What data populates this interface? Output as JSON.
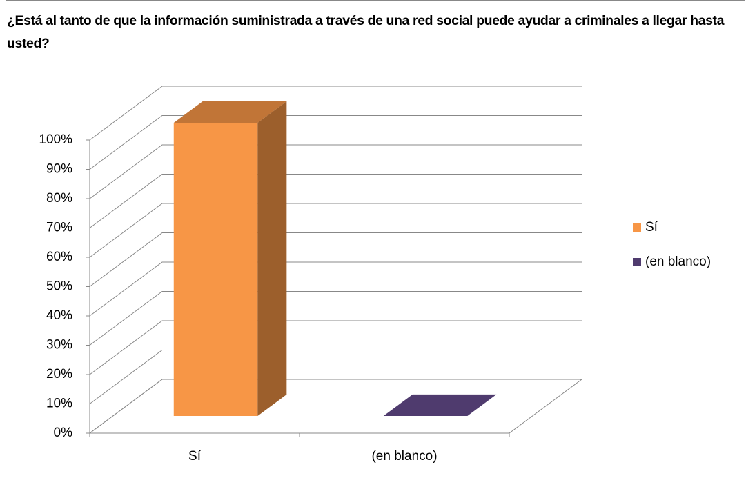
{
  "chart_data": {
    "type": "bar3d",
    "title": "¿Está al tanto de que la información suministrada a través de una red social puede ayudar a criminales a llegar hasta usted?",
    "categories": [
      "Sí",
      "(en blanco)"
    ],
    "values": [
      100,
      0
    ],
    "colors": [
      "#f79646",
      "#4f3b6e"
    ],
    "ylim": [
      0,
      100
    ],
    "yticks": [
      {
        "value": 0,
        "label": "0%"
      },
      {
        "value": 10,
        "label": "10%"
      },
      {
        "value": 20,
        "label": "20%"
      },
      {
        "value": 30,
        "label": "30%"
      },
      {
        "value": 40,
        "label": "40%"
      },
      {
        "value": 50,
        "label": "50%"
      },
      {
        "value": 60,
        "label": "60%"
      },
      {
        "value": 70,
        "label": "70%"
      },
      {
        "value": 80,
        "label": "80%"
      },
      {
        "value": 90,
        "label": "90%"
      },
      {
        "value": 100,
        "label": "100%"
      }
    ],
    "grid": true,
    "legend": "right"
  }
}
